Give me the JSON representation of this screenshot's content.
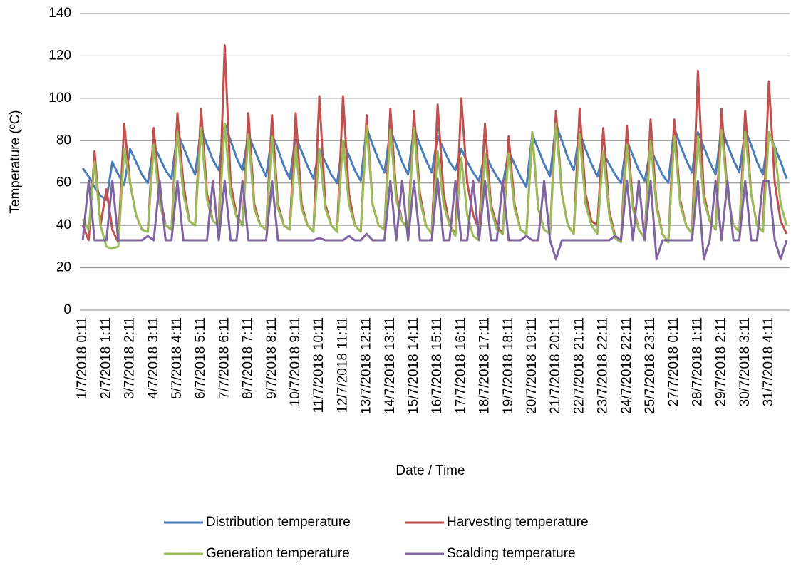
{
  "chart_data": {
    "type": "line",
    "y_label": "Temperature (ºC)",
    "x_label": "Date / Time",
    "ylim": [
      0,
      140
    ],
    "yticks": [
      0,
      20,
      40,
      60,
      80,
      100,
      120,
      140
    ],
    "grid": true,
    "categories": [
      "1/7/2018 0:11",
      null,
      null,
      null,
      "2/7/2018 1:11",
      null,
      null,
      null,
      "3/7/2018 2:11",
      null,
      null,
      null,
      "4/7/2018 3:11",
      null,
      null,
      null,
      "5/7/2018 4:11",
      null,
      null,
      null,
      "6/7/2018 5:11",
      null,
      null,
      null,
      "7/7/2018 6:11",
      null,
      null,
      null,
      "8/7/2018 7:11",
      null,
      null,
      null,
      "9/7/2018 8:11",
      null,
      null,
      null,
      "10/7/2018 9:11",
      null,
      null,
      null,
      "11/7/2018 10:11",
      null,
      null,
      null,
      "12/7/2018 11:11",
      null,
      null,
      null,
      "13/7/2018 12:11",
      null,
      null,
      null,
      "14/7/2018 13:11",
      null,
      null,
      null,
      "15/7/2018 14:11",
      null,
      null,
      null,
      "16/7/2018 15:11",
      null,
      null,
      null,
      "17/7/2018 16:11",
      null,
      null,
      null,
      "18/7/2018 17:11",
      null,
      null,
      null,
      "19/7/2018 18:11",
      null,
      null,
      null,
      "20/7/2018 19:11",
      null,
      null,
      null,
      "21/7/2018 20:11",
      null,
      null,
      null,
      "22/7/2018 21:11",
      null,
      null,
      null,
      "23/7/2018 22:11",
      null,
      null,
      null,
      "24/7/2018 22:11",
      null,
      null,
      null,
      "25/7/2018 23:11",
      null,
      null,
      null,
      "27/7/2018 0:11",
      null,
      null,
      null,
      "28/7/2018 1:11",
      null,
      null,
      null,
      "29/7/2018 2:11",
      null,
      null,
      null,
      "30/7/2018 3:11",
      null,
      null,
      null,
      "31/7/2018 4:11",
      null,
      null,
      null
    ],
    "series": [
      {
        "name": "Distribution temperature",
        "color": "#4a7ebb",
        "values": [
          67,
          63,
          58,
          54,
          52,
          70,
          64,
          59,
          76,
          70,
          64,
          60,
          78,
          72,
          66,
          62,
          84,
          77,
          70,
          64,
          86,
          78,
          71,
          66,
          88,
          80,
          72,
          66,
          83,
          76,
          69,
          63,
          83,
          76,
          68,
          62,
          82,
          75,
          68,
          62,
          76,
          70,
          64,
          60,
          80,
          73,
          66,
          61,
          86,
          78,
          71,
          65,
          85,
          78,
          70,
          64,
          86,
          78,
          71,
          65,
          82,
          76,
          70,
          66,
          76,
          70,
          65,
          61,
          74,
          68,
          63,
          59,
          75,
          69,
          63,
          58,
          83,
          76,
          69,
          63,
          88,
          80,
          72,
          66,
          84,
          76,
          69,
          63,
          74,
          69,
          64,
          60,
          80,
          73,
          66,
          61,
          76,
          70,
          64,
          60,
          86,
          78,
          71,
          65,
          84,
          77,
          70,
          64,
          86,
          78,
          71,
          65,
          85,
          78,
          70,
          64,
          84,
          77,
          70,
          62
        ]
      },
      {
        "name": "Harvesting temperature",
        "color": "#c0504d",
        "values": [
          40,
          33,
          75,
          40,
          57,
          38,
          32,
          88,
          60,
          45,
          38,
          37,
          86,
          55,
          40,
          38,
          93,
          60,
          42,
          40,
          95,
          55,
          42,
          40,
          125,
          60,
          45,
          40,
          93,
          50,
          40,
          38,
          92,
          50,
          40,
          38,
          93,
          50,
          40,
          37,
          101,
          50,
          40,
          37,
          101,
          55,
          40,
          37,
          92,
          50,
          40,
          38,
          95,
          55,
          42,
          38,
          94,
          55,
          40,
          36,
          97,
          55,
          40,
          36,
          100,
          60,
          45,
          38,
          88,
          50,
          40,
          36,
          82,
          50,
          38,
          36,
          83,
          48,
          38,
          36,
          94,
          55,
          40,
          36,
          95,
          55,
          42,
          40,
          86,
          47,
          35,
          33,
          87,
          50,
          38,
          34,
          90,
          50,
          36,
          32,
          90,
          52,
          40,
          36,
          113,
          55,
          42,
          38,
          95,
          55,
          40,
          37,
          94,
          55,
          40,
          37,
          108,
          60,
          42,
          36
        ]
      },
      {
        "name": "Generation temperature",
        "color": "#9bbb59",
        "values": [
          43,
          38,
          70,
          40,
          30,
          29,
          30,
          76,
          60,
          45,
          38,
          37,
          78,
          50,
          40,
          38,
          84,
          55,
          42,
          40,
          86,
          52,
          42,
          40,
          88,
          55,
          44,
          40,
          83,
          48,
          40,
          38,
          82,
          48,
          40,
          38,
          77,
          48,
          40,
          37,
          76,
          48,
          40,
          37,
          80,
          50,
          40,
          37,
          87,
          50,
          40,
          38,
          85,
          52,
          42,
          38,
          86,
          52,
          40,
          36,
          75,
          50,
          40,
          35,
          72,
          45,
          35,
          33,
          74,
          48,
          38,
          36,
          74,
          48,
          38,
          36,
          84,
          48,
          38,
          36,
          88,
          55,
          40,
          36,
          83,
          50,
          40,
          36,
          75,
          45,
          34,
          32,
          78,
          48,
          38,
          34,
          80,
          48,
          36,
          32,
          82,
          50,
          40,
          36,
          82,
          52,
          42,
          38,
          85,
          55,
          40,
          37,
          84,
          55,
          40,
          37,
          84,
          76,
          50,
          40
        ]
      },
      {
        "name": "Scalding temperature",
        "color": "#8064a2",
        "values": [
          33,
          61,
          33,
          33,
          33,
          61,
          33,
          33,
          33,
          33,
          33,
          35,
          33,
          61,
          33,
          33,
          61,
          33,
          33,
          33,
          33,
          33,
          61,
          33,
          61,
          33,
          33,
          61,
          33,
          33,
          33,
          33,
          61,
          33,
          33,
          33,
          33,
          33,
          33,
          33,
          34,
          33,
          33,
          33,
          33,
          35,
          33,
          33,
          36,
          33,
          33,
          33,
          61,
          33,
          61,
          33,
          61,
          33,
          33,
          33,
          62,
          33,
          33,
          61,
          33,
          33,
          61,
          33,
          61,
          33,
          33,
          61,
          33,
          33,
          33,
          35,
          33,
          33,
          61,
          33,
          24,
          33,
          33,
          33,
          33,
          33,
          33,
          33,
          33,
          33,
          35,
          33,
          61,
          33,
          61,
          33,
          61,
          24,
          33,
          33,
          33,
          33,
          33,
          33,
          61,
          24,
          33,
          61,
          33,
          61,
          33,
          33,
          61,
          33,
          33,
          61,
          61,
          33,
          24,
          33
        ]
      }
    ]
  }
}
